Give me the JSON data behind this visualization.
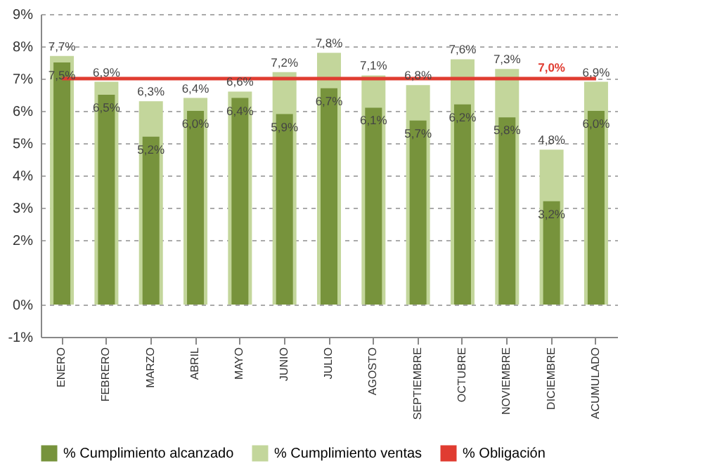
{
  "chart_data": {
    "type": "bar",
    "categories": [
      "ENERO",
      "FEBRERO",
      "MARZO",
      "ABRIL",
      "MAYO",
      "JUNIO",
      "JULIO",
      "AGOSTO",
      "SEPTIEMBRE",
      "OCTUBRE",
      "NOVIEMBRE",
      "DICIEMBRE",
      "ACUMULADO"
    ],
    "series": [
      {
        "name": "% Cumplimiento ventas",
        "color": "#c3d69b",
        "values": [
          7.7,
          6.9,
          6.3,
          6.4,
          6.6,
          7.2,
          7.8,
          7.1,
          6.8,
          7.6,
          7.3,
          4.8,
          6.9
        ],
        "value_labels": [
          "7,7%",
          "6,9%",
          "6,3%",
          "6,4%",
          "6,6%",
          "7,2%",
          "7,8%",
          "7,1%",
          "6,8%",
          "7,6%",
          "7,3%",
          "4,8%",
          "6,9%"
        ]
      },
      {
        "name": "% Cumplimiento alcanzado",
        "color": "#77933c",
        "values": [
          7.5,
          6.5,
          5.2,
          6.0,
          6.4,
          5.9,
          6.7,
          6.1,
          5.7,
          6.2,
          5.8,
          3.2,
          6.0
        ],
        "value_labels": [
          "7,5%",
          "6,5%",
          "5,2%",
          "6,0%",
          "6,4%",
          "5,9%",
          "6,7%",
          "6,1%",
          "5,7%",
          "6,2%",
          "5,8%",
          "3,2%",
          "6,0%"
        ]
      },
      {
        "name": "% Obligación",
        "type": "line",
        "color": "#e03c31",
        "values": [
          7.0,
          7.0,
          7.0,
          7.0,
          7.0,
          7.0,
          7.0,
          7.0,
          7.0,
          7.0,
          7.0,
          7.0,
          7.0
        ],
        "value_labels": [
          null,
          null,
          null,
          null,
          null,
          null,
          null,
          null,
          null,
          null,
          null,
          "7,0%",
          null
        ]
      }
    ],
    "ylim": [
      -1,
      9
    ],
    "yticks": [
      {
        "value": -1,
        "label": "-1%"
      },
      {
        "value": 0,
        "label": "0%"
      },
      {
        "value": 2,
        "label": "2%"
      },
      {
        "value": 3,
        "label": "3%"
      },
      {
        "value": 4,
        "label": "4%"
      },
      {
        "value": 5,
        "label": "5%"
      },
      {
        "value": 6,
        "label": "6%"
      },
      {
        "value": 7,
        "label": "7%"
      },
      {
        "value": 8,
        "label": "8%"
      },
      {
        "value": 9,
        "label": "9%"
      }
    ],
    "grid": "y",
    "legend": "bottom"
  }
}
